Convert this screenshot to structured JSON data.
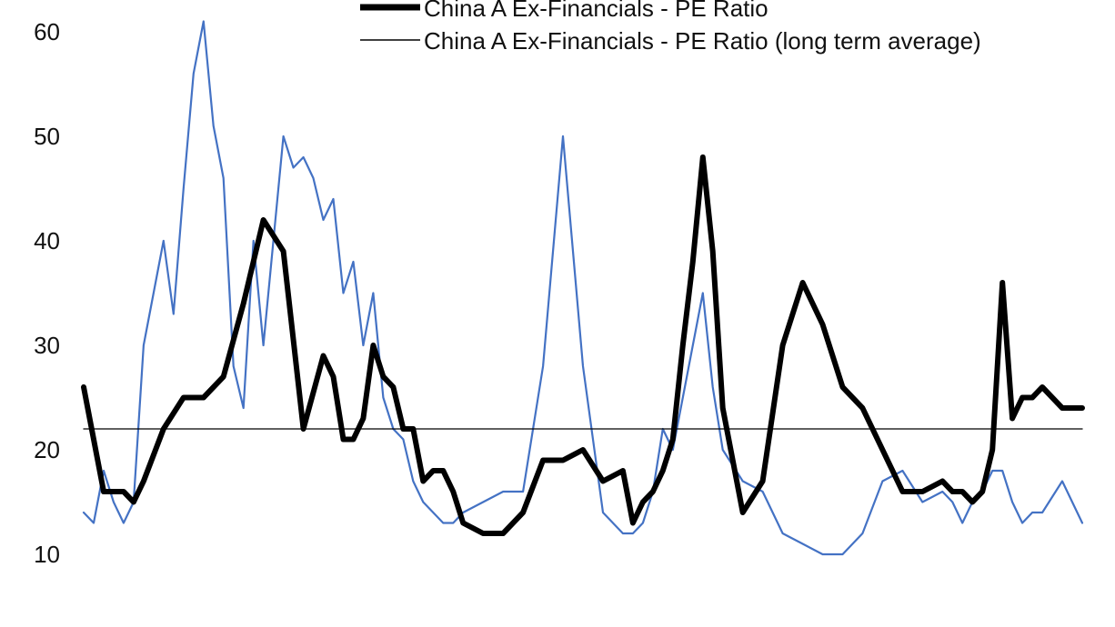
{
  "chart_data": {
    "type": "line",
    "title": "",
    "xlabel": "",
    "ylabel": "",
    "ylim": [
      10,
      60
    ],
    "yticks": [
      10,
      20,
      30,
      40,
      50,
      60
    ],
    "grid": false,
    "legend_position": "top-right",
    "legend": [
      {
        "label": "China A Ex-Financials - PE Ratio",
        "style": "thick black line"
      },
      {
        "label": "China A Ex-Financials - PE Ratio (long term average)",
        "style": "thin black line"
      }
    ],
    "colors": {
      "pe_ratio": "#000000",
      "long_term_average": "#000000",
      "unlabeled_blue_series": "#4472C4"
    },
    "x_unit": "observation index (axis has no printed labels)",
    "series": [
      {
        "name": "China A Ex-Financials - PE Ratio",
        "x": [
          0,
          1,
          2,
          3,
          4,
          5,
          6,
          8,
          10,
          12,
          14,
          16,
          18,
          20,
          22,
          24,
          25,
          26,
          27,
          28,
          29,
          30,
          31,
          32,
          33,
          34,
          35,
          36,
          37,
          38,
          40,
          42,
          44,
          46,
          48,
          50,
          52,
          54,
          55,
          56,
          57,
          58,
          59,
          60,
          61,
          62,
          63,
          64,
          66,
          68,
          70,
          72,
          74,
          76,
          78,
          80,
          82,
          84,
          86,
          87,
          88,
          89,
          90,
          91,
          92,
          93,
          94,
          95,
          96,
          98,
          100
        ],
        "values": [
          26,
          21,
          16,
          16,
          16,
          15,
          17,
          22,
          25,
          25,
          27,
          34,
          42,
          39,
          22,
          29,
          27,
          21,
          21,
          23,
          30,
          27,
          26,
          22,
          22,
          17,
          18,
          18,
          16,
          13,
          12,
          12,
          14,
          19,
          19,
          20,
          17,
          18,
          13,
          15,
          16,
          18,
          21,
          30,
          38,
          48,
          39,
          24,
          14,
          17,
          30,
          36,
          32,
          26,
          24,
          20,
          16,
          16,
          17,
          16,
          16,
          15,
          16,
          20,
          36,
          23,
          25,
          25,
          26,
          24,
          24
        ]
      },
      {
        "name": "",
        "x": [
          0,
          1,
          2,
          3,
          4,
          5,
          6,
          8,
          9,
          10,
          11,
          12,
          13,
          14,
          15,
          16,
          17,
          18,
          19,
          20,
          21,
          22,
          23,
          24,
          25,
          26,
          27,
          28,
          29,
          30,
          31,
          32,
          33,
          34,
          35,
          36,
          37,
          38,
          40,
          42,
          44,
          46,
          48,
          50,
          52,
          54,
          55,
          56,
          57,
          58,
          59,
          60,
          61,
          62,
          63,
          64,
          66,
          68,
          70,
          72,
          74,
          76,
          78,
          80,
          82,
          84,
          86,
          87,
          88,
          89,
          90,
          91,
          92,
          93,
          94,
          95,
          96,
          98,
          100
        ],
        "values": [
          14,
          13,
          18,
          15,
          13,
          15,
          30,
          40,
          33,
          45,
          56,
          61,
          51,
          46,
          28,
          24,
          40,
          30,
          40,
          50,
          47,
          48,
          46,
          42,
          44,
          35,
          38,
          30,
          35,
          25,
          22,
          21,
          17,
          15,
          14,
          13,
          13,
          14,
          15,
          16,
          16,
          28,
          50,
          28,
          14,
          12,
          12,
          13,
          16,
          22,
          20,
          25,
          30,
          35,
          26,
          20,
          17,
          16,
          12,
          11,
          10,
          10,
          12,
          17,
          18,
          15,
          16,
          15,
          13,
          15,
          16,
          18,
          18,
          15,
          13,
          14,
          14,
          17,
          13
        ]
      },
      {
        "name": "China A Ex-Financials - PE Ratio (long term average)",
        "x": [
          0,
          100
        ],
        "values": [
          22,
          22
        ]
      }
    ]
  }
}
